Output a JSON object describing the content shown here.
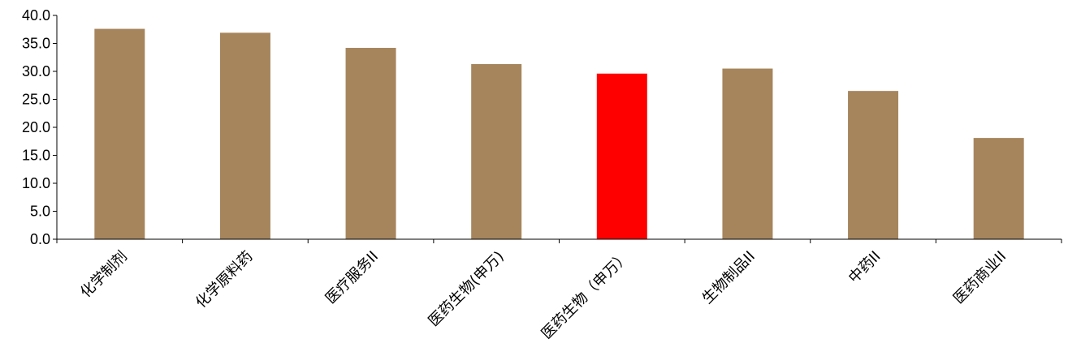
{
  "chart_data": {
    "type": "bar",
    "title": "",
    "xlabel": "",
    "ylabel": "",
    "ylim": [
      0,
      40
    ],
    "yticks": [
      0,
      5,
      10,
      15,
      20,
      25,
      30,
      35,
      40
    ],
    "ytick_labels": [
      "0.0",
      "5.0",
      "10.0",
      "15.0",
      "20.0",
      "25.0",
      "30.0",
      "35.0",
      "40.0"
    ],
    "grid": false,
    "categories": [
      "化学制剂",
      "化学原料药",
      "医疗服务II",
      "医药生物(申万)",
      "医药生物（申万）",
      "生物制品II",
      "中药II",
      "医药商业II"
    ],
    "values": [
      37.6,
      36.9,
      34.2,
      31.3,
      29.6,
      30.5,
      26.5,
      18.1
    ],
    "colors": [
      "#A6855D",
      "#A6855D",
      "#A6855D",
      "#A6855D",
      "#FF0000",
      "#A6855D",
      "#A6855D",
      "#A6855D"
    ],
    "highlight_category": "医药生物（申万）"
  }
}
